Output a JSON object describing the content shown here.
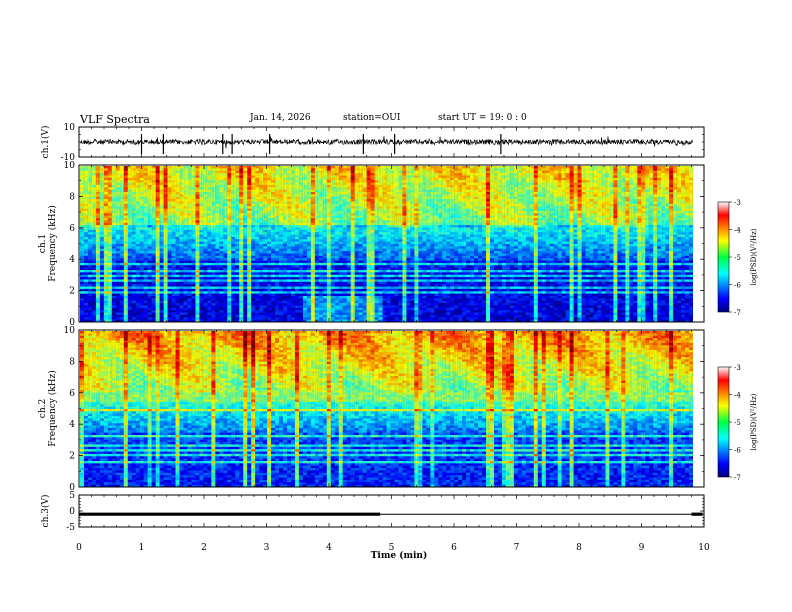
{
  "header": {
    "title": "VLF Spectra",
    "date": "Jan. 14, 2026",
    "station": "station=OUI",
    "start": "start  UT =  19: 0  : 0"
  },
  "chart_data": {
    "type": "heatmap",
    "title": "VLF Spectra",
    "xlabel": "Time (min)",
    "xlim": [
      0,
      10
    ],
    "x_ticks": [
      "0",
      "1",
      "2",
      "3",
      "4",
      "5",
      "6",
      "7",
      "8",
      "9",
      "10"
    ],
    "panels": [
      {
        "id": "ch1-waveform",
        "type": "line",
        "ylabel": "ch.1(V)",
        "ylim": [
          -10,
          10
        ],
        "y_ticks": [
          "10",
          "-10"
        ],
        "baseline": 0,
        "spike_times_min": [
          1.0,
          1.35,
          2.3,
          2.45,
          3.05,
          4.55,
          5.05,
          6.75
        ]
      },
      {
        "id": "ch1-spectrogram",
        "type": "heatmap",
        "ylabel": "ch.1\nFrequency (kHz)",
        "ylim": [
          0,
          10
        ],
        "y_ticks": [
          "0",
          "2",
          "4",
          "6",
          "8",
          "10"
        ],
        "colorbar": {
          "label": "log(PSD)(V²/Hz)",
          "range": [
            -7,
            -3
          ],
          "ticks": [
            "-3",
            "-4",
            "-5",
            "-6",
            "-7"
          ]
        }
      },
      {
        "id": "ch2-spectrogram",
        "type": "heatmap",
        "ylabel": "ch.2\nFrequency (kHz)",
        "ylim": [
          0,
          10
        ],
        "y_ticks": [
          "0",
          "2",
          "4",
          "6",
          "8",
          "10"
        ],
        "colorbar": {
          "label": "log(PSD)(V²/Hz)",
          "range": [
            -7,
            -3
          ],
          "ticks": [
            "-3",
            "-4",
            "-5",
            "-6",
            "-7"
          ]
        }
      },
      {
        "id": "ch3-trace",
        "type": "line",
        "ylabel": "ch.3(V)",
        "ylim": [
          -5,
          5
        ],
        "y_ticks": [
          "5",
          "0",
          "-5"
        ],
        "segments": [
          {
            "from_min": 0.0,
            "to_min": 4.82,
            "value": -1.0
          },
          {
            "from_min": 4.82,
            "to_min": 9.8,
            "value": -1.0,
            "style": "thin"
          },
          {
            "from_min": 9.8,
            "to_min": 9.98,
            "value": -1.0
          }
        ]
      }
    ]
  }
}
